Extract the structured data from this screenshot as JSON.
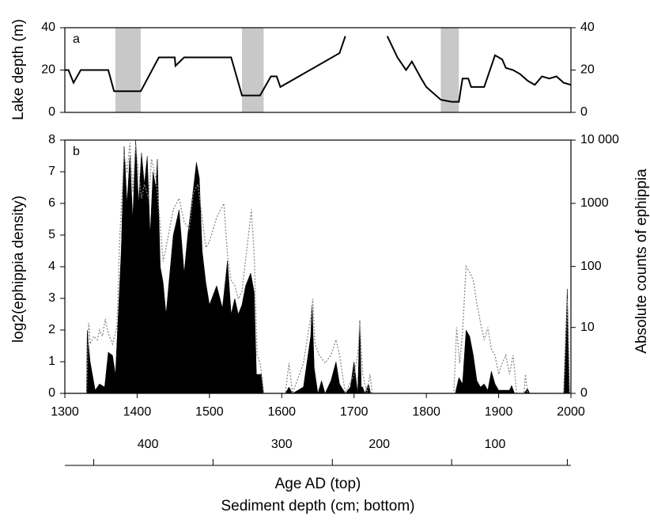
{
  "chart_data": [
    {
      "type": "line",
      "panel_label": "a",
      "ylabel": "Lake depth (m)",
      "xlim": [
        1300,
        2000
      ],
      "ylim": [
        0,
        40
      ],
      "yticks": [
        0,
        20,
        40
      ],
      "y2lim": [
        0,
        40
      ],
      "y2ticks": [
        0,
        20,
        40
      ],
      "shaded": [
        [
          1370,
          1405
        ],
        [
          1545,
          1575
        ],
        [
          1820,
          1845
        ]
      ],
      "shade_color": "#c8c8c8",
      "x": [
        1300,
        1305,
        1312,
        1322,
        1360,
        1368,
        1405,
        1430,
        1452,
        1453,
        1465,
        1530,
        1545,
        1570,
        1585,
        1593,
        1598,
        1680,
        1688,
        1720,
        1746,
        1760,
        1772,
        1780,
        1793,
        1800,
        1820,
        1835,
        1845,
        1850,
        1858,
        1862,
        1880,
        1895,
        1900,
        1905,
        1910,
        1920,
        1930,
        1940,
        1950,
        1955,
        1960,
        1970,
        1980,
        1990,
        2000
      ],
      "series": [
        {
          "color": "#000000",
          "values": [
            20,
            20,
            14,
            20,
            20,
            10,
            10,
            26,
            26,
            22,
            26,
            26,
            8,
            8,
            17,
            17,
            12,
            28,
            36,
            null,
            36,
            26,
            20,
            24,
            16,
            12,
            6,
            5,
            5,
            16,
            16,
            12,
            12,
            27,
            26,
            25,
            21,
            20,
            18,
            15,
            13,
            15,
            17,
            16,
            17,
            14,
            13
          ]
        }
      ]
    },
    {
      "type": "area",
      "panel_label": "b",
      "ylabel": "log2(ephippia density)",
      "y2label": "Absolute counts of ephippia",
      "xlabel": "Age AD (top)",
      "depth_label": "Sediment depth (cm; bottom)",
      "xlim": [
        1300,
        2000
      ],
      "xticks": [
        1300,
        1400,
        1500,
        1600,
        1700,
        1800,
        1900,
        2000
      ],
      "ylim": [
        0,
        8
      ],
      "yticks": [
        0,
        1,
        2,
        3,
        4,
        5,
        6,
        7,
        8
      ],
      "y2scale": "log1p",
      "y2lim": [
        0,
        9999
      ],
      "y2ticks": [
        0,
        10,
        100,
        1000,
        {
          "value": 10000,
          "label": "10 000"
        }
      ],
      "depth_ticks": [
        {
          "value": 1415,
          "label": "400"
        },
        {
          "value": 1600,
          "label": "300"
        },
        {
          "value": 1735,
          "label": "200"
        },
        {
          "value": 1895,
          "label": "100"
        }
      ],
      "depth_ticks_minor": [
        1340,
        1505,
        1670,
        1835,
        1995
      ],
      "series": [
        {
          "color": "#000000",
          "fill": true,
          "x": [
            1300,
            1330,
            1331,
            1335,
            1342,
            1348,
            1355,
            1360,
            1366,
            1370,
            1378,
            1382,
            1386,
            1390,
            1394,
            1398,
            1402,
            1406,
            1410,
            1414,
            1418,
            1422,
            1426,
            1428,
            1432,
            1436,
            1440,
            1450,
            1458,
            1465,
            1470,
            1478,
            1482,
            1486,
            1490,
            1495,
            1500,
            1510,
            1518,
            1525,
            1530,
            1535,
            1540,
            1545,
            1550,
            1557,
            1562,
            1565,
            1572,
            1575,
            1605,
            1610,
            1615,
            1630,
            1640,
            1642,
            1645,
            1650,
            1655,
            1660,
            1668,
            1675,
            1680,
            1688,
            1695,
            1700,
            1705,
            1708,
            1710,
            1712,
            1715,
            1720,
            1723,
            1840,
            1845,
            1850,
            1855,
            1860,
            1865,
            1870,
            1875,
            1880,
            1885,
            1890,
            1895,
            1900,
            1915,
            1918,
            1922,
            1935,
            1940,
            1943,
            1990,
            1995,
            1998
          ],
          "values": [
            0,
            0,
            2,
            1,
            0.1,
            0.3,
            0.2,
            1.3,
            1.2,
            0.6,
            4.5,
            7.8,
            6,
            7.5,
            5.5,
            8,
            6,
            7.6,
            6.6,
            7.5,
            5,
            7,
            6.5,
            7.4,
            4,
            3.5,
            2.5,
            5,
            5.8,
            3.8,
            5,
            6.5,
            7.3,
            6.8,
            4.5,
            3.5,
            2.8,
            3.4,
            2.7,
            4.2,
            2.5,
            3,
            2.5,
            2.8,
            3.4,
            3.8,
            3.2,
            0.6,
            0.6,
            0,
            0,
            0.2,
            0,
            0.2,
            1.8,
            2.8,
            0.8,
            0,
            0.4,
            0,
            0.4,
            1,
            0.3,
            0,
            0.2,
            1,
            0,
            2.3,
            0.2,
            0.2,
            0,
            0.3,
            0,
            0,
            0.5,
            0.3,
            2,
            1.8,
            1.2,
            0.4,
            0.2,
            0.3,
            0.1,
            0.7,
            0.3,
            0.1,
            0.1,
            0.25,
            0,
            0,
            0.15,
            0,
            0,
            3.3,
            0
          ]
        },
        {
          "color": "#8a8a8a",
          "axis": "y2",
          "dashed": true,
          "x": [
            1300,
            1330,
            1333,
            1335,
            1340,
            1345,
            1348,
            1352,
            1356,
            1360,
            1366,
            1372,
            1376,
            1382,
            1386,
            1390,
            1394,
            1398,
            1402,
            1406,
            1410,
            1416,
            1420,
            1426,
            1430,
            1436,
            1440,
            1450,
            1458,
            1465,
            1472,
            1478,
            1484,
            1490,
            1495,
            1500,
            1510,
            1520,
            1525,
            1530,
            1535,
            1540,
            1545,
            1552,
            1558,
            1562,
            1566,
            1570,
            1575,
            1605,
            1610,
            1615,
            1630,
            1640,
            1643,
            1646,
            1652,
            1660,
            1668,
            1675,
            1680,
            1688,
            1700,
            1705,
            1708,
            1712,
            1718,
            1722,
            1725,
            1838,
            1842,
            1846,
            1850,
            1855,
            1860,
            1865,
            1870,
            1875,
            1880,
            1885,
            1890,
            1895,
            1900,
            1905,
            1910,
            1915,
            1920,
            1925,
            1935,
            1937,
            1940,
            1990,
            1995,
            1998
          ],
          "values": [
            0,
            0,
            12,
            5,
            7,
            6,
            9,
            7,
            14,
            8,
            5,
            10,
            300,
            6000,
            3000,
            9000,
            1500,
            8500,
            3000,
            1200,
            2000,
            1200,
            5000,
            2500,
            800,
            120,
            200,
            800,
            1200,
            500,
            400,
            1500,
            2000,
            600,
            200,
            250,
            600,
            1000,
            150,
            60,
            50,
            30,
            40,
            200,
            800,
            150,
            3,
            2,
            0,
            0,
            2,
            0,
            2,
            15,
            30,
            5,
            3,
            2,
            3,
            6,
            3,
            0,
            1,
            3,
            12,
            1,
            0,
            1,
            0,
            0,
            10,
            2,
            8,
            100,
            80,
            60,
            25,
            12,
            6,
            10,
            4,
            3,
            1,
            2,
            3,
            1,
            3,
            0,
            0,
            1,
            0,
            0,
            30,
            0
          ]
        }
      ]
    }
  ]
}
